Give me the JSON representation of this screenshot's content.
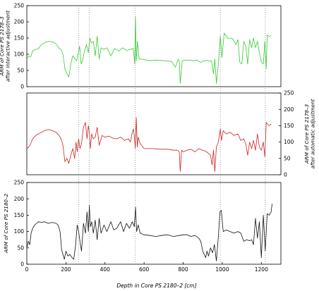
{
  "chart_data": {
    "type": "line",
    "xlabel": "Depth in Core PS 2180–2  [cm]",
    "xlim": [
      0,
      1300
    ],
    "x_ticks": [
      0,
      200,
      400,
      600,
      800,
      1000,
      1200
    ],
    "tie_lines_depth": [
      265,
      320,
      555,
      990,
      1220
    ],
    "panels": [
      {
        "id": "top",
        "ylabel_lines": [
          "ARM of Core PS 2178–3",
          "after interactive adjustment"
        ],
        "ylabel_side": "left",
        "ylim": [
          0,
          250
        ],
        "y_ticks": [
          0,
          50,
          100,
          150,
          200,
          250
        ],
        "show_x_ticks": false,
        "color": "#33cc33",
        "series": {
          "x": [
            0,
            10,
            20,
            30,
            45,
            60,
            75,
            90,
            110,
            130,
            150,
            165,
            175,
            185,
            195,
            205,
            215,
            225,
            235,
            245,
            255,
            262,
            270,
            278,
            285,
            295,
            305,
            315,
            322,
            330,
            340,
            350,
            360,
            370,
            380,
            395,
            410,
            430,
            450,
            470,
            490,
            510,
            530,
            545,
            552,
            556,
            560,
            566,
            575,
            590,
            610,
            630,
            660,
            700,
            740,
            760,
            775,
            780,
            785,
            795,
            810,
            830,
            850,
            870,
            890,
            905,
            915,
            925,
            935,
            945,
            955,
            962,
            970,
            980,
            990,
            998,
            1010,
            1030,
            1050,
            1070,
            1080,
            1090,
            1100,
            1110,
            1120,
            1130,
            1140,
            1150,
            1160,
            1170,
            1180,
            1190,
            1200,
            1210,
            1218,
            1225,
            1230,
            1240,
            1250
          ],
          "y": [
            85,
            95,
            92,
            110,
            115,
            118,
            130,
            135,
            140,
            138,
            132,
            118,
            115,
            100,
            55,
            40,
            30,
            70,
            95,
            88,
            80,
            100,
            125,
            70,
            80,
            110,
            130,
            105,
            150,
            135,
            140,
            95,
            155,
            85,
            120,
            115,
            120,
            95,
            118,
            110,
            120,
            112,
            115,
            118,
            70,
            215,
            80,
            140,
            85,
            85,
            82,
            80,
            82,
            80,
            78,
            60,
            85,
            78,
            10,
            80,
            82,
            82,
            80,
            82,
            75,
            80,
            80,
            82,
            78,
            80,
            40,
            85,
            10,
            70,
            155,
            90,
            165,
            148,
            150,
            130,
            145,
            75,
            70,
            140,
            125,
            70,
            145,
            120,
            150,
            120,
            140,
            105,
            75,
            70,
            140,
            55,
            160,
            155,
            158
          ]
        }
      },
      {
        "id": "middle",
        "ylabel_lines": [
          "ARM of Core PS 2178–3",
          "after automatic adjustment"
        ],
        "ylabel_side": "right",
        "ylim": [
          0,
          250
        ],
        "y_ticks": [
          0,
          50,
          100,
          150,
          200,
          250
        ],
        "show_x_ticks": false,
        "color": "#cc2222",
        "series": {
          "x": [
            0,
            10,
            20,
            30,
            45,
            60,
            75,
            90,
            110,
            130,
            150,
            165,
            175,
            185,
            195,
            205,
            215,
            225,
            235,
            245,
            252,
            258,
            265,
            272,
            280,
            290,
            300,
            308,
            315,
            320,
            325,
            332,
            340,
            350,
            360,
            370,
            385,
            400,
            420,
            440,
            460,
            480,
            500,
            520,
            530,
            538,
            545,
            550,
            555,
            560,
            565,
            570,
            580,
            600,
            640,
            680,
            720,
            750,
            770,
            780,
            785,
            792,
            800,
            820,
            840,
            860,
            880,
            900,
            915,
            930,
            940,
            948,
            955,
            962,
            970,
            980,
            990,
            996,
            1005,
            1020,
            1040,
            1060,
            1080,
            1095,
            1110,
            1120,
            1130,
            1140,
            1150,
            1160,
            1170,
            1180,
            1190,
            1200,
            1210,
            1218,
            1225,
            1232,
            1240,
            1250
          ],
          "y": [
            80,
            85,
            95,
            110,
            120,
            125,
            130,
            135,
            138,
            135,
            130,
            120,
            110,
            90,
            40,
            50,
            35,
            60,
            80,
            50,
            100,
            70,
            110,
            80,
            95,
            145,
            160,
            110,
            150,
            130,
            80,
            125,
            110,
            115,
            145,
            90,
            120,
            115,
            118,
            112,
            110,
            115,
            105,
            110,
            100,
            125,
            140,
            120,
            80,
            175,
            85,
            115,
            95,
            80,
            80,
            78,
            78,
            75,
            75,
            70,
            10,
            75,
            70,
            75,
            78,
            70,
            80,
            75,
            72,
            65,
            60,
            30,
            75,
            10,
            85,
            100,
            140,
            105,
            135,
            125,
            130,
            120,
            125,
            105,
            110,
            95,
            60,
            100,
            80,
            105,
            75,
            125,
            85,
            75,
            100,
            55,
            160,
            155,
            150,
            155
          ]
        }
      },
      {
        "id": "bottom",
        "ylabel_lines": [
          "ARM of Core PS 2180–2"
        ],
        "ylabel_side": "left",
        "ylim": [
          0,
          250
        ],
        "y_ticks": [
          0,
          50,
          100,
          150,
          200,
          250
        ],
        "show_x_ticks": true,
        "color": "#111111",
        "series": {
          "x": [
            0,
            8,
            15,
            22,
            30,
            40,
            50,
            60,
            75,
            90,
            110,
            130,
            150,
            160,
            170,
            178,
            185,
            192,
            200,
            210,
            220,
            232,
            240,
            250,
            258,
            265,
            272,
            280,
            290,
            300,
            308,
            315,
            320,
            325,
            332,
            340,
            350,
            360,
            370,
            380,
            395,
            410,
            430,
            445,
            460,
            480,
            495,
            510,
            525,
            540,
            550,
            556,
            562,
            570,
            580,
            600,
            630,
            660,
            690,
            720,
            750,
            780,
            800,
            820,
            840,
            860,
            880,
            890,
            900,
            908,
            915,
            922,
            930,
            940,
            950,
            960,
            970,
            980,
            988,
            995,
            1005,
            1020,
            1040,
            1060,
            1080,
            1095,
            1110,
            1125,
            1140,
            1150,
            1160,
            1170,
            1180,
            1190,
            1200,
            1210,
            1220,
            1230,
            1240,
            1250,
            1255
          ],
          "y": [
            50,
            70,
            60,
            95,
            110,
            120,
            125,
            130,
            128,
            130,
            125,
            128,
            125,
            120,
            100,
            45,
            30,
            15,
            40,
            25,
            30,
            20,
            15,
            60,
            120,
            100,
            70,
            40,
            125,
            95,
            160,
            100,
            180,
            115,
            130,
            95,
            135,
            75,
            140,
            95,
            120,
            100,
            130,
            105,
            110,
            130,
            100,
            125,
            110,
            130,
            115,
            175,
            100,
            120,
            95,
            90,
            88,
            85,
            88,
            90,
            85,
            88,
            90,
            90,
            85,
            88,
            80,
            70,
            40,
            30,
            20,
            40,
            25,
            50,
            35,
            60,
            10,
            85,
            160,
            165,
            100,
            105,
            100,
            95,
            100,
            95,
            70,
            75,
            72,
            75,
            60,
            140,
            80,
            130,
            20,
            150,
            40,
            155,
            150,
            160,
            185
          ]
        }
      }
    ]
  }
}
